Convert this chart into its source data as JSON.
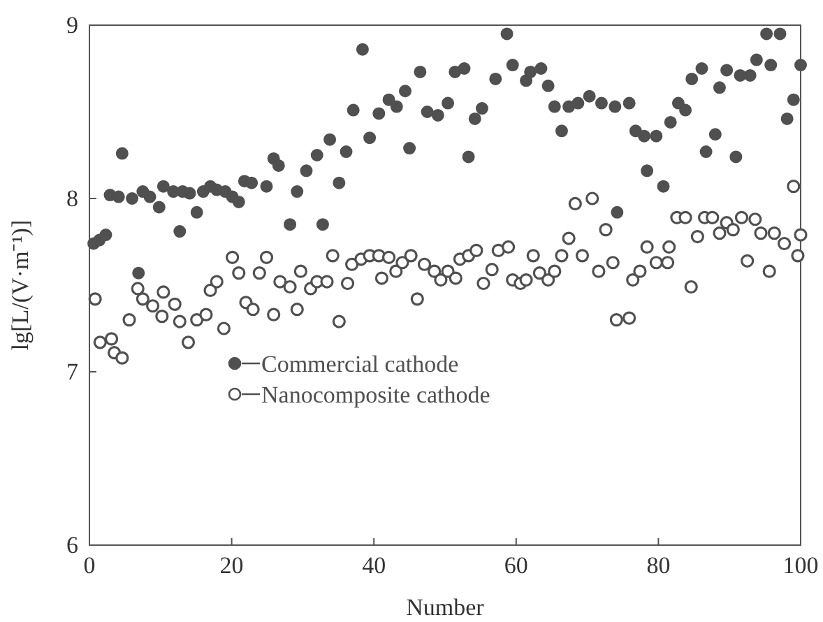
{
  "chart_data": {
    "type": "scatter",
    "xlabel": "Number",
    "ylabel": "lg[L/(V·m⁻¹)]",
    "xlim": [
      0,
      100
    ],
    "ylim": [
      6,
      9
    ],
    "xticks": [
      0,
      20,
      40,
      60,
      80,
      100
    ],
    "yticks": [
      6,
      7,
      8,
      9
    ],
    "grid": false,
    "legend": "bottom left",
    "series": [
      {
        "name": "Commercial cathode",
        "color": "#505050",
        "marker": "circle",
        "x": [
          0.6,
          1.4,
          2.3,
          2.9,
          4.1,
          4.6,
          6.0,
          6.9,
          7.5,
          8.5,
          9.8,
          10.4,
          11.8,
          12.7,
          13.1,
          14.1,
          15.1,
          16.0,
          17.0,
          17.9,
          19.1,
          20.1,
          21.0,
          21.8,
          22.8,
          24.9,
          25.9,
          26.6,
          28.2,
          29.2,
          30.5,
          32.0,
          32.8,
          33.8,
          35.1,
          36.1,
          37.1,
          38.4,
          39.4,
          40.7,
          42.1,
          43.2,
          44.4,
          45.0,
          46.5,
          47.5,
          49.0,
          50.4,
          51.4,
          52.7,
          53.3,
          54.2,
          55.2,
          57.1,
          58.7,
          59.5,
          61.4,
          62.0,
          63.5,
          64.5,
          65.4,
          66.4,
          67.4,
          68.7,
          70.3,
          72.0,
          73.9,
          74.2,
          75.9,
          76.8,
          78.0,
          78.4,
          79.7,
          80.7,
          81.7,
          82.8,
          83.8,
          84.7,
          86.1,
          86.7,
          88.0,
          88.6,
          89.6,
          90.9,
          91.5,
          92.9,
          93.8,
          95.2,
          95.8,
          97.1,
          98.1,
          99.0,
          100
        ],
        "values": [
          7.74,
          7.76,
          7.79,
          8.02,
          8.01,
          8.26,
          8.0,
          7.57,
          8.04,
          8.01,
          7.95,
          8.07,
          8.04,
          7.81,
          8.04,
          8.03,
          7.92,
          8.04,
          8.07,
          8.05,
          8.04,
          8.01,
          7.98,
          8.1,
          8.09,
          8.07,
          8.23,
          8.19,
          7.85,
          8.04,
          8.16,
          8.25,
          7.85,
          8.34,
          8.09,
          8.27,
          8.51,
          8.86,
          8.35,
          8.49,
          8.57,
          8.53,
          8.62,
          8.29,
          8.73,
          8.5,
          8.48,
          8.55,
          8.73,
          8.75,
          8.24,
          8.46,
          8.52,
          8.69,
          8.95,
          8.77,
          8.68,
          8.73,
          8.75,
          8.65,
          8.53,
          8.39,
          8.53,
          8.55,
          8.59,
          8.55,
          8.53,
          7.92,
          8.55,
          8.39,
          8.36,
          8.16,
          8.36,
          8.07,
          8.44,
          8.55,
          8.51,
          8.69,
          8.75,
          8.27,
          8.37,
          8.64,
          8.74,
          8.24,
          8.71,
          8.71,
          8.8,
          8.95,
          8.77,
          8.95,
          8.46,
          8.57,
          8.77
        ]
      },
      {
        "name": "Nanocomposite cathode",
        "color": "#505050",
        "marker": "circle-open",
        "x": [
          0.8,
          1.5,
          3.1,
          3.5,
          4.6,
          5.6,
          6.8,
          7.5,
          8.9,
          10.2,
          10.4,
          12.0,
          12.7,
          13.9,
          15.1,
          16.4,
          17.0,
          17.9,
          18.9,
          20.1,
          21.0,
          22.0,
          23.0,
          23.9,
          24.9,
          25.9,
          26.8,
          28.2,
          29.2,
          29.7,
          31.1,
          32.0,
          33.4,
          34.2,
          35.1,
          36.3,
          36.9,
          38.2,
          39.4,
          40.7,
          41.1,
          42.1,
          43.1,
          44.0,
          45.2,
          46.1,
          47.1,
          48.5,
          49.4,
          50.4,
          51.5,
          52.1,
          53.3,
          54.4,
          55.4,
          56.6,
          57.5,
          58.9,
          59.5,
          60.6,
          61.4,
          62.4,
          63.3,
          64.5,
          65.4,
          66.4,
          67.4,
          68.3,
          69.3,
          70.7,
          71.6,
          72.6,
          73.6,
          74.1,
          75.9,
          76.4,
          77.4,
          78.4,
          79.7,
          81.3,
          81.5,
          82.6,
          83.8,
          84.6,
          85.5,
          86.5,
          87.6,
          88.6,
          89.6,
          90.5,
          91.7,
          92.5,
          93.6,
          94.4,
          95.6,
          96.3,
          97.7,
          99.0,
          99.6,
          100
        ],
        "values": [
          7.42,
          7.17,
          7.19,
          7.11,
          7.08,
          7.3,
          7.48,
          7.42,
          7.38,
          7.32,
          7.46,
          7.39,
          7.29,
          7.17,
          7.3,
          7.33,
          7.47,
          7.52,
          7.25,
          7.66,
          7.57,
          7.4,
          7.36,
          7.57,
          7.66,
          7.33,
          7.52,
          7.49,
          7.36,
          7.58,
          7.48,
          7.52,
          7.52,
          7.67,
          7.29,
          7.51,
          7.62,
          7.65,
          7.67,
          7.67,
          7.54,
          7.66,
          7.58,
          7.63,
          7.67,
          7.42,
          7.62,
          7.58,
          7.53,
          7.58,
          7.54,
          7.65,
          7.67,
          7.7,
          7.51,
          7.59,
          7.7,
          7.72,
          7.53,
          7.51,
          7.53,
          7.67,
          7.57,
          7.53,
          7.58,
          7.67,
          7.77,
          7.97,
          7.67,
          8.0,
          7.58,
          7.82,
          7.63,
          7.3,
          7.31,
          7.53,
          7.58,
          7.72,
          7.63,
          7.63,
          7.72,
          7.89,
          7.89,
          7.49,
          7.78,
          7.89,
          7.89,
          7.8,
          7.86,
          7.82,
          7.89,
          7.64,
          7.88,
          7.8,
          7.58,
          7.8,
          7.74,
          8.07,
          7.67,
          7.79
        ]
      }
    ]
  }
}
